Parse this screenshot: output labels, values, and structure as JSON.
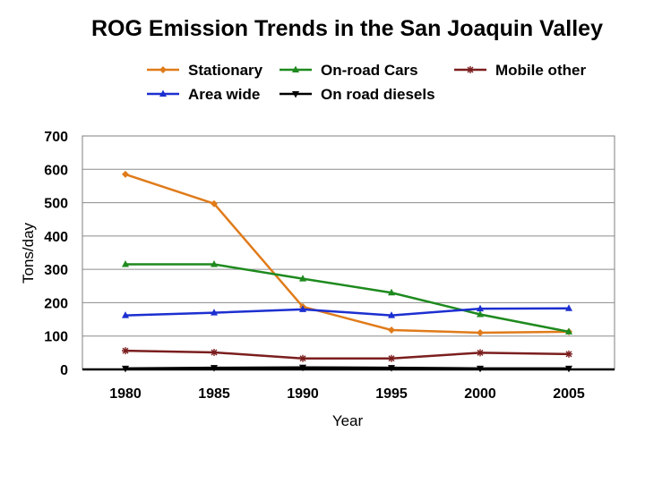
{
  "chart_data": {
    "type": "line",
    "title": "ROG Emission Trends in the San Joaquin Valley",
    "xlabel": "Year",
    "ylabel": "Tons/day",
    "x": [
      1980,
      1985,
      1990,
      1995,
      2000,
      2005
    ],
    "ylim": [
      0,
      700
    ],
    "yticks": [
      0,
      100,
      200,
      300,
      400,
      500,
      600,
      700
    ],
    "grid": true,
    "legend_position": "top",
    "series": [
      {
        "name": "Stationary",
        "color": "#E07B1A",
        "marker": "diamond",
        "values": [
          585,
          497,
          188,
          118,
          110,
          113
        ]
      },
      {
        "name": "On-road Cars",
        "color": "#1E8A1E",
        "marker": "triangle-up",
        "values": [
          315,
          315,
          272,
          230,
          165,
          113
        ]
      },
      {
        "name": "Mobile other",
        "color": "#7B1E1E",
        "marker": "star",
        "values": [
          56,
          51,
          33,
          33,
          50,
          46
        ]
      },
      {
        "name": "Area wide",
        "color": "#1C2FD0",
        "marker": "triangle-up",
        "values": [
          162,
          170,
          180,
          162,
          182,
          183
        ]
      },
      {
        "name": "On road diesels",
        "color": "#000000",
        "marker": "triangle-down",
        "values": [
          3,
          5,
          6,
          5,
          3,
          3
        ]
      }
    ]
  }
}
